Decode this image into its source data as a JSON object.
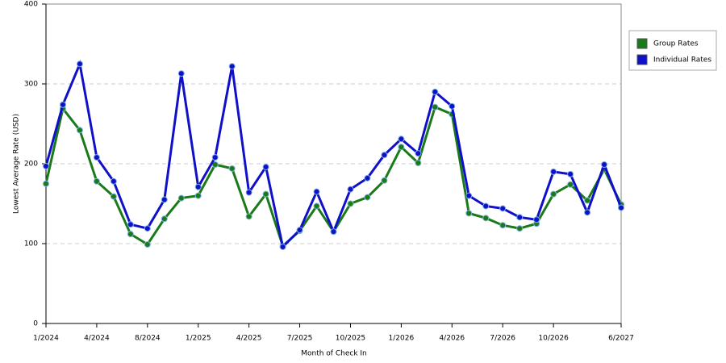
{
  "chart_data": {
    "type": "line",
    "y_label": "Lowest Average Rate (USD)",
    "x_label": "Month of Check In",
    "categories": [
      "1/2024",
      null,
      null,
      "4/2024",
      null,
      null,
      "8/2024",
      null,
      null,
      "1/2025",
      null,
      null,
      "4/2025",
      null,
      null,
      "7/2025",
      null,
      null,
      "10/2025",
      null,
      null,
      "1/2026",
      null,
      null,
      "4/2026",
      null,
      null,
      "7/2026",
      null,
      null,
      "10/2026",
      null,
      null,
      null,
      "6/2027"
    ],
    "series": [
      {
        "name": "Group Rates",
        "color": "#1a7a1a",
        "values": [
          175,
          269,
          242,
          178,
          159,
          112,
          99,
          131,
          157,
          160,
          199,
          194,
          134,
          162,
          97,
          116,
          147,
          115,
          150,
          158,
          179,
          221,
          201,
          271,
          262,
          138,
          132,
          123,
          119,
          125,
          162,
          174,
          154,
          193,
          149
        ]
      },
      {
        "name": "Individual Rates",
        "color": "#1010c8",
        "values": [
          197,
          274,
          325,
          208,
          178,
          124,
          119,
          155,
          313,
          171,
          208,
          322,
          164,
          196,
          96,
          117,
          165,
          115,
          168,
          182,
          211,
          231,
          213,
          290,
          272,
          160,
          147,
          144,
          133,
          130,
          190,
          187,
          139,
          199,
          145
        ]
      }
    ],
    "ylim": [
      0,
      400
    ],
    "yticks": [
      0,
      100,
      200,
      300,
      400
    ],
    "grid": true,
    "legend": "right"
  }
}
